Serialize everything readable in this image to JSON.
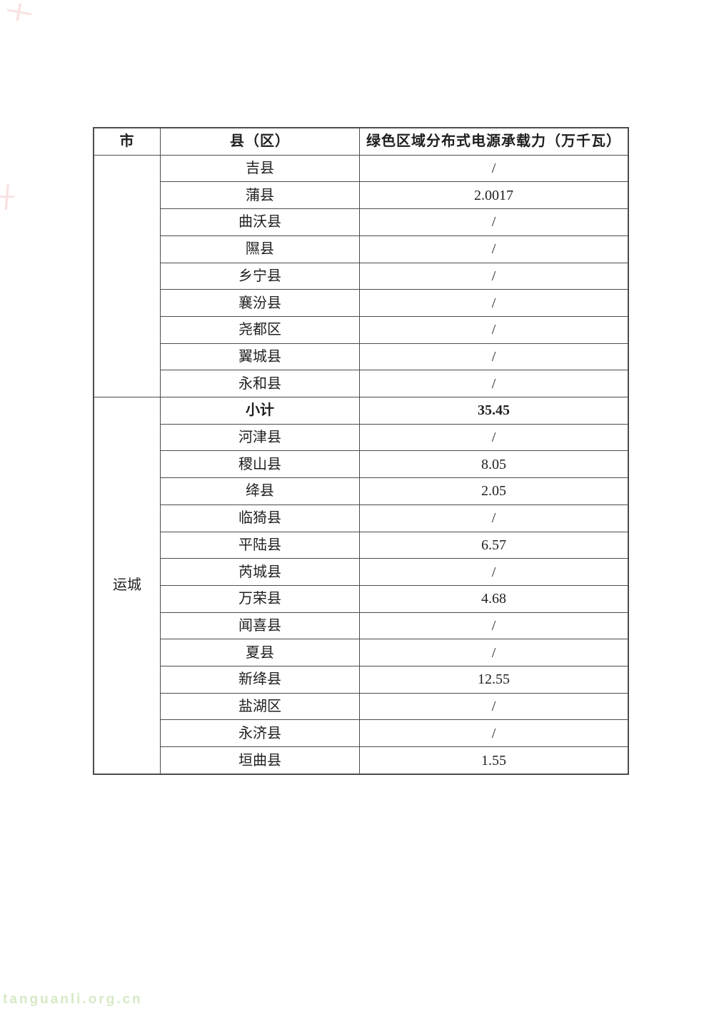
{
  "page": {
    "watermark": "tanguanli.org.cn"
  },
  "table": {
    "headers": [
      "市",
      "县（区）",
      "绿色区域分布式电源承载力（万千瓦）"
    ],
    "city_groups": [
      {
        "city": "",
        "rows_spanned": 9
      },
      {
        "city": "运城",
        "rows_spanned": 14
      }
    ],
    "rows": [
      {
        "county": "吉县",
        "value": "/",
        "bold": false
      },
      {
        "county": "蒲县",
        "value": "2.0017",
        "bold": false
      },
      {
        "county": "曲沃县",
        "value": "/",
        "bold": false
      },
      {
        "county": "隰县",
        "value": "/",
        "bold": false
      },
      {
        "county": "乡宁县",
        "value": "/",
        "bold": false
      },
      {
        "county": "襄汾县",
        "value": "/",
        "bold": false
      },
      {
        "county": "尧都区",
        "value": "/",
        "bold": false
      },
      {
        "county": "翼城县",
        "value": "/",
        "bold": false
      },
      {
        "county": "永和县",
        "value": "/",
        "bold": false
      },
      {
        "county": "小计",
        "value": "35.45",
        "bold": true
      },
      {
        "county": "河津县",
        "value": "/",
        "bold": false
      },
      {
        "county": "稷山县",
        "value": "8.05",
        "bold": false
      },
      {
        "county": "绛县",
        "value": "2.05",
        "bold": false
      },
      {
        "county": "临猗县",
        "value": "/",
        "bold": false
      },
      {
        "county": "平陆县",
        "value": "6.57",
        "bold": false
      },
      {
        "county": "芮城县",
        "value": "/",
        "bold": false
      },
      {
        "county": "万荣县",
        "value": "4.68",
        "bold": false
      },
      {
        "county": "闻喜县",
        "value": "/",
        "bold": false
      },
      {
        "county": "夏县",
        "value": "/",
        "bold": false
      },
      {
        "county": "新绛县",
        "value": "12.55",
        "bold": false
      },
      {
        "county": "盐湖区",
        "value": "/",
        "bold": false
      },
      {
        "county": "永济县",
        "value": "/",
        "bold": false
      },
      {
        "county": "垣曲县",
        "value": "1.55",
        "bold": false
      }
    ]
  }
}
